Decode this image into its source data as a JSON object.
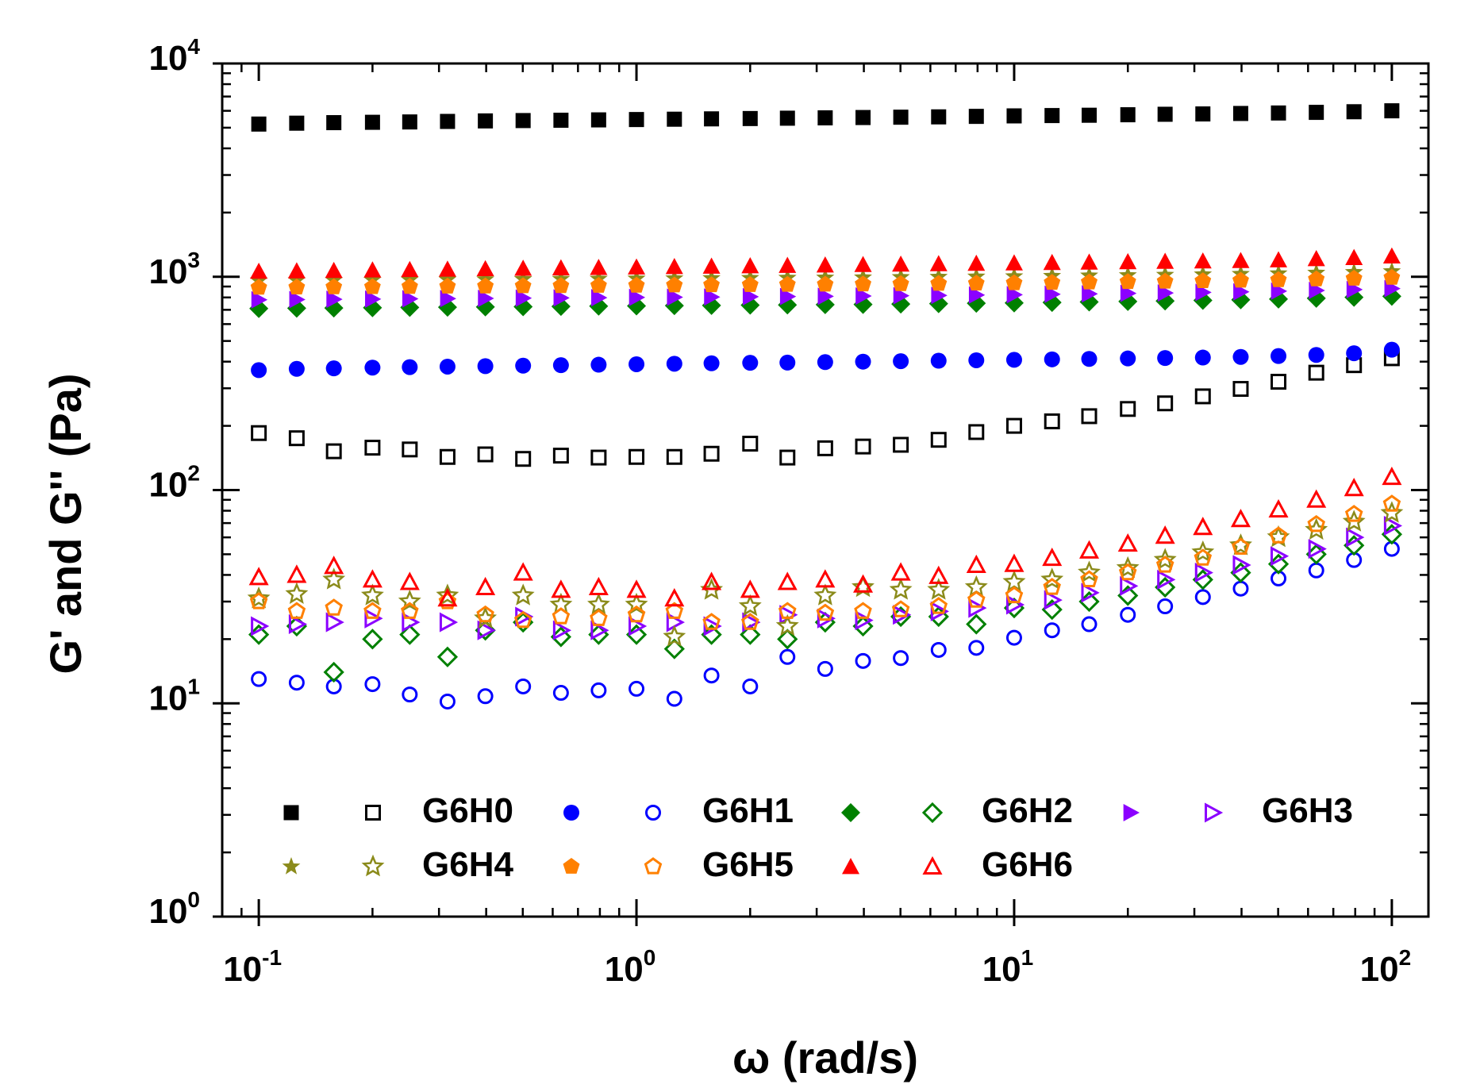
{
  "chart_data": {
    "type": "scatter",
    "xscale": "log",
    "yscale": "log",
    "xlim": [
      0.08,
      125
    ],
    "ylim": [
      1,
      10000
    ],
    "xlabel": "ω (rad/s)",
    "ylabel": "G' and G'' (Pa)",
    "xticks": [
      {
        "value": 0.1,
        "base": "10",
        "exp": "-1"
      },
      {
        "value": 1,
        "base": "10",
        "exp": "0"
      },
      {
        "value": 10,
        "base": "10",
        "exp": "1"
      },
      {
        "value": 100,
        "base": "10",
        "exp": "2"
      }
    ],
    "yticks": [
      {
        "value": 1,
        "base": "10",
        "exp": "0"
      },
      {
        "value": 10,
        "base": "10",
        "exp": "1"
      },
      {
        "value": 100,
        "base": "10",
        "exp": "2"
      },
      {
        "value": 1000,
        "base": "10",
        "exp": "3"
      },
      {
        "value": 10000,
        "base": "10",
        "exp": "4"
      }
    ],
    "legend_position": "bottom-left",
    "x": [
      0.1,
      0.126,
      0.158,
      0.2,
      0.251,
      0.316,
      0.398,
      0.501,
      0.631,
      0.794,
      1.0,
      1.26,
      1.58,
      2.0,
      2.51,
      3.16,
      3.98,
      5.01,
      6.31,
      7.94,
      10.0,
      12.6,
      15.8,
      20.0,
      25.1,
      31.6,
      39.8,
      50.1,
      63.1,
      79.4,
      100.0
    ],
    "samples": [
      {
        "name": "G6H0",
        "color": "#000000",
        "marker": "square",
        "storage_modulus": [
          5200,
          5250,
          5280,
          5300,
          5320,
          5350,
          5380,
          5400,
          5420,
          5440,
          5460,
          5480,
          5500,
          5520,
          5540,
          5560,
          5580,
          5600,
          5620,
          5650,
          5680,
          5700,
          5720,
          5750,
          5780,
          5800,
          5830,
          5860,
          5900,
          5940,
          6000
        ],
        "loss_modulus": [
          185,
          175,
          152,
          158,
          155,
          143,
          147,
          140,
          145,
          142,
          143,
          143,
          148,
          165,
          142,
          157,
          160,
          163,
          172,
          187,
          200,
          210,
          222,
          240,
          255,
          275,
          298,
          322,
          355,
          385,
          415
        ]
      },
      {
        "name": "G6H1",
        "color": "#0000ff",
        "marker": "circle",
        "storage_modulus": [
          365,
          370,
          372,
          375,
          377,
          379,
          381,
          383,
          385,
          387,
          389,
          391,
          393,
          395,
          396,
          398,
          400,
          402,
          404,
          406,
          408,
          410,
          412,
          414,
          416,
          418,
          421,
          425,
          430,
          438,
          455
        ],
        "loss_modulus": [
          13,
          12.5,
          12,
          12.3,
          11,
          10.2,
          10.8,
          12,
          11.2,
          11.5,
          11.7,
          10.5,
          13.5,
          12,
          16.5,
          14.5,
          15.8,
          16.3,
          17.8,
          18.2,
          20.3,
          22,
          23.5,
          26,
          28.5,
          31.5,
          34.5,
          38.5,
          42,
          47,
          53
        ]
      },
      {
        "name": "G6H2",
        "color": "#008000",
        "marker": "diamond",
        "storage_modulus": [
          710,
          712,
          714,
          716,
          718,
          720,
          722,
          724,
          726,
          728,
          730,
          732,
          734,
          736,
          738,
          740,
          742,
          745,
          748,
          751,
          754,
          758,
          762,
          766,
          770,
          775,
          780,
          786,
          793,
          801,
          810
        ],
        "loss_modulus": [
          21,
          23,
          14,
          20,
          21,
          16.5,
          22,
          24,
          20.5,
          21,
          21,
          18,
          21,
          21,
          20,
          24,
          23,
          25.5,
          25.5,
          23.5,
          28,
          27.5,
          30,
          32,
          35,
          38,
          41,
          45,
          50,
          55,
          62
        ]
      },
      {
        "name": "G6H3",
        "color": "#8b00ff",
        "marker": "triangle-right",
        "storage_modulus": [
          780,
          782,
          784,
          786,
          788,
          790,
          792,
          794,
          796,
          798,
          800,
          802,
          804,
          806,
          808,
          810,
          812,
          815,
          818,
          821,
          824,
          828,
          832,
          836,
          840,
          845,
          850,
          856,
          863,
          871,
          880
        ],
        "loss_modulus": [
          23,
          23.5,
          24,
          25,
          24,
          24,
          22,
          25.5,
          22,
          22,
          23,
          24,
          23,
          24,
          26,
          25,
          24.5,
          26,
          27,
          28,
          29,
          30.5,
          33,
          35.5,
          38,
          41,
          44.5,
          49,
          53,
          60,
          68
        ]
      },
      {
        "name": "G6H4",
        "color": "#8b8b1b",
        "marker": "star",
        "storage_modulus": [
          960,
          962,
          964,
          966,
          968,
          970,
          972,
          974,
          976,
          978,
          980,
          982,
          984,
          986,
          988,
          990,
          992,
          995,
          998,
          1001,
          1004,
          1008,
          1012,
          1016,
          1020,
          1025,
          1030,
          1036,
          1043,
          1051,
          1060
        ],
        "loss_modulus": [
          31,
          32.5,
          38,
          32,
          30,
          32,
          25,
          32,
          29,
          29,
          29,
          20.5,
          34,
          28.5,
          23,
          32,
          35,
          34,
          34,
          35,
          37,
          38,
          41,
          43,
          47,
          51,
          55,
          60,
          65,
          71,
          78
        ]
      },
      {
        "name": "G6H5",
        "color": "#ff8000",
        "marker": "pentagon",
        "storage_modulus": [
          890,
          892,
          894,
          896,
          898,
          900,
          902,
          904,
          906,
          908,
          910,
          912,
          914,
          916,
          918,
          920,
          922,
          925,
          928,
          931,
          934,
          938,
          942,
          946,
          950,
          955,
          960,
          966,
          973,
          981,
          990
        ],
        "loss_modulus": [
          30,
          27,
          28,
          27,
          27,
          30,
          26,
          24.5,
          25.5,
          25,
          26,
          27,
          24,
          24,
          27,
          26.5,
          27,
          27.5,
          28.5,
          30.5,
          32,
          35,
          38,
          41,
          44.5,
          48,
          54,
          61,
          69,
          77,
          86
        ]
      },
      {
        "name": "G6H6",
        "color": "#ff0000",
        "marker": "triangle-up",
        "storage_modulus": [
          1060,
          1065,
          1070,
          1075,
          1080,
          1085,
          1090,
          1095,
          1100,
          1105,
          1110,
          1115,
          1120,
          1125,
          1130,
          1135,
          1140,
          1145,
          1150,
          1155,
          1160,
          1165,
          1170,
          1175,
          1180,
          1185,
          1190,
          1200,
          1215,
          1230,
          1250
        ],
        "loss_modulus": [
          39,
          40,
          44,
          38,
          37,
          31,
          35,
          41,
          34,
          35,
          34,
          31,
          37,
          34,
          37,
          38,
          36,
          41,
          39.5,
          44.5,
          45,
          48,
          52,
          56,
          61,
          67,
          73,
          81,
          90,
          102,
          115
        ]
      }
    ]
  }
}
